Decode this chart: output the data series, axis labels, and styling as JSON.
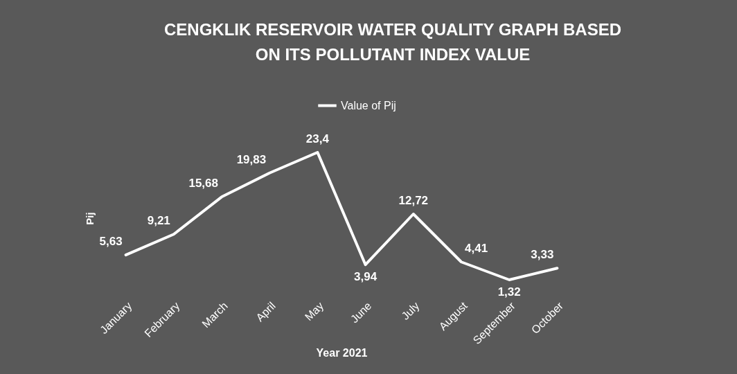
{
  "chart_data": {
    "type": "line",
    "title": [
      "CENGKLIK RESERVOIR WATER QUALITY GRAPH BASED",
      "ON ITS POLLUTANT INDEX VALUE"
    ],
    "xlabel": "Year 2021",
    "ylabel": "Pij",
    "categories": [
      "January",
      "February",
      "March",
      "April",
      "May",
      "June",
      "July",
      "August",
      "September",
      "October"
    ],
    "series": [
      {
        "name": "Value of Pij",
        "color": "#ffffff",
        "values": [
          5.63,
          9.21,
          15.68,
          19.83,
          23.4,
          3.94,
          12.72,
          4.41,
          1.32,
          3.33
        ],
        "value_labels": [
          "5,63",
          "9,21",
          "15,68",
          "19,83",
          "23,4",
          "3,94",
          "12,72",
          "4,41",
          "1,32",
          "3,33"
        ]
      }
    ],
    "legend": "top",
    "marker": "none",
    "line_style": "solid",
    "tick_labels": "x",
    "grid": false
  }
}
